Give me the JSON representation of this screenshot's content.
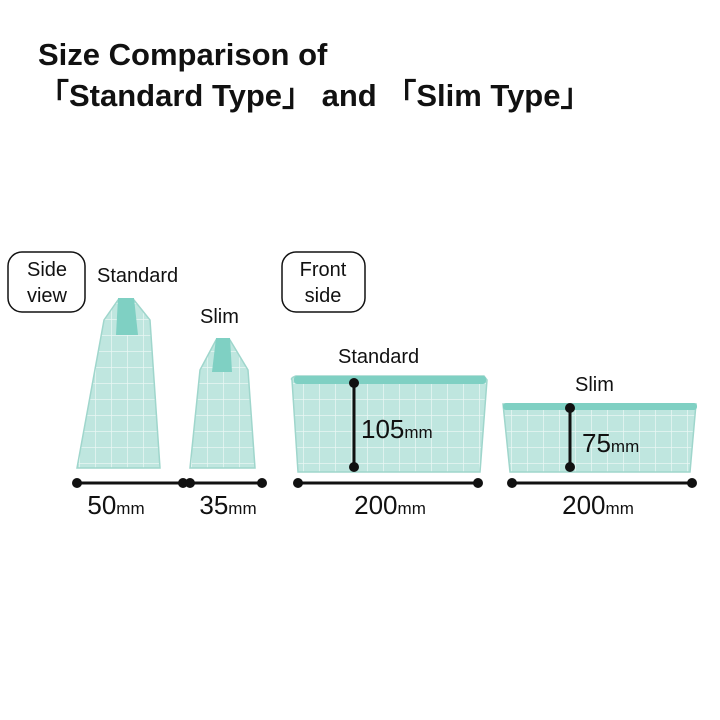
{
  "header": {
    "title_lines": [
      "Size Comparison of",
      "「Standard Type」 and 「Slim Type」"
    ]
  },
  "side_view": {
    "label_lines": [
      "Side",
      "view"
    ],
    "items": [
      {
        "name": "Standard",
        "width": {
          "value": 50,
          "unit": "mm"
        }
      },
      {
        "name": "Slim",
        "width": {
          "value": 35,
          "unit": "mm"
        }
      }
    ]
  },
  "front_side": {
    "label_lines": [
      "Front",
      "side"
    ],
    "items": [
      {
        "name": "Standard",
        "width": {
          "value": 200,
          "unit": "mm"
        },
        "height": {
          "value": 105,
          "unit": "mm"
        }
      },
      {
        "name": "Slim",
        "width": {
          "value": 200,
          "unit": "mm"
        },
        "height": {
          "value": 75,
          "unit": "mm"
        }
      }
    ]
  }
}
